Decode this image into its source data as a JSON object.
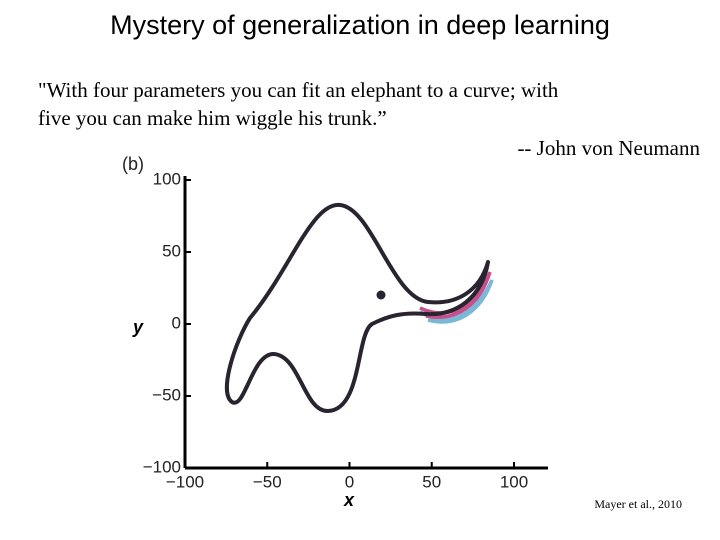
{
  "slide": {
    "title": "Mystery of generalization in deep learning",
    "quote": {
      "lines": [
        "\"With four parameters you can fit an elephant to a curve; with",
        "five you can make him wiggle his trunk.”"
      ],
      "attribution": "-- John von Neumann"
    },
    "figure": {
      "panel_label": "(b)",
      "y_axis": {
        "label": "y",
        "ticks": [
          "100",
          "50",
          "0",
          "−50",
          "−100"
        ]
      },
      "x_axis": {
        "label": "x",
        "ticks": [
          "−100",
          "−50",
          "0",
          "50",
          "100"
        ]
      }
    },
    "citation": "Mayer et al., 2010"
  }
}
